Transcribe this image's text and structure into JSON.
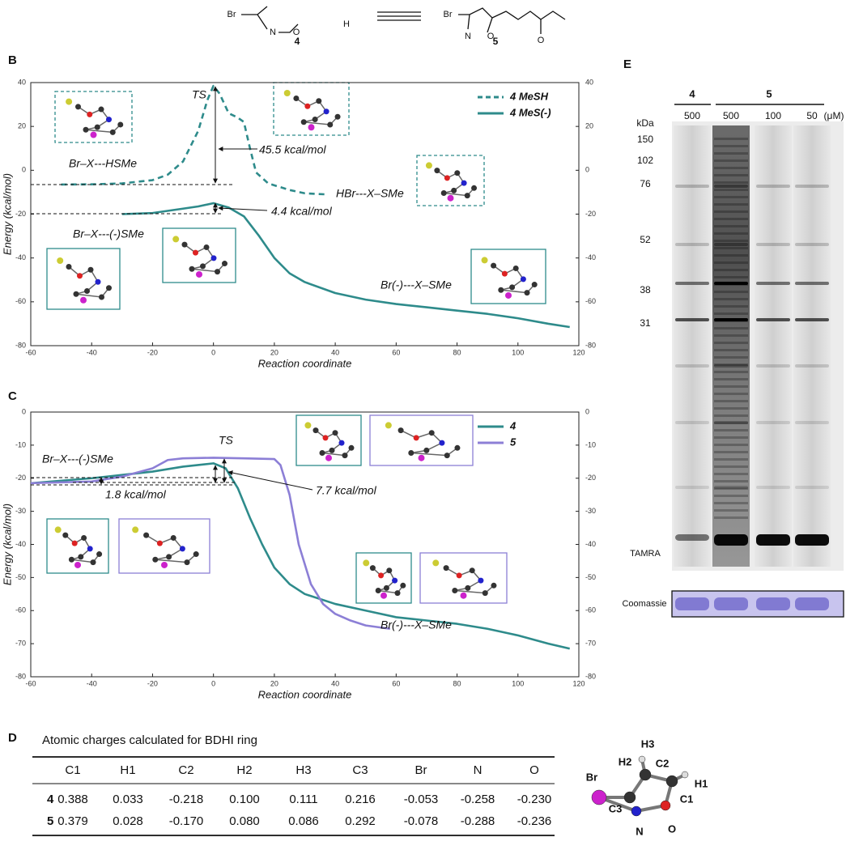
{
  "scheme": {
    "labels": [
      "4",
      "5"
    ],
    "atoms": [
      "Br",
      "N",
      "O",
      "H",
      "Br",
      "N",
      "O",
      "O"
    ]
  },
  "chart_data": [
    {
      "type": "line",
      "panel": "B",
      "x_label": "Reaction coordinate",
      "y_label": "Energy (kcal/mol)",
      "xlim": [
        -60,
        120
      ],
      "xticks": [
        -60,
        -40,
        -20,
        0,
        20,
        40,
        60,
        80,
        100,
        120
      ],
      "ylim": [
        -80,
        40
      ],
      "yticks": [
        -80,
        -60,
        -40,
        -20,
        0,
        20,
        40
      ],
      "y2lim": [
        -80,
        40
      ],
      "y2ticks": [
        -80,
        -60,
        -40,
        -20,
        0,
        20,
        40
      ],
      "legend": "top-right",
      "series": [
        {
          "name": "4 MeSH",
          "color": "#2e8b8b",
          "dashed": true,
          "x": [
            -50,
            -40,
            -30,
            -20,
            -15,
            -10,
            -5,
            -2,
            0,
            2,
            5,
            8,
            10,
            12,
            14,
            18,
            25,
            30,
            37
          ],
          "values": [
            -6.5,
            -6.4,
            -6,
            -4.5,
            -2,
            4,
            18,
            32,
            38.5,
            35,
            26,
            24,
            22,
            10,
            -1,
            -6,
            -9,
            -10.5,
            -11
          ]
        },
        {
          "name": "4 MeS(-)",
          "color": "#2e8b8b",
          "dashed": false,
          "x": [
            -30,
            -20,
            -10,
            -5,
            0,
            5,
            10,
            15,
            20,
            25,
            30,
            40,
            50,
            60,
            70,
            80,
            90,
            100,
            110,
            117
          ],
          "values": [
            -20,
            -19.5,
            -17.5,
            -16.5,
            -15,
            -17,
            -21,
            -30,
            -40,
            -47,
            -51,
            -56,
            -59,
            -61,
            -62.5,
            -64,
            -65.5,
            -67.5,
            -70,
            -71.5
          ]
        }
      ],
      "annotations": [
        "TS",
        "45.5 kcal/mol",
        "Br–X---HSMe",
        "HBr---X–SMe",
        "4.4 kcal/mol",
        "Br–X---(-)SMe",
        "Br(-)---X–SMe"
      ]
    },
    {
      "type": "line",
      "panel": "C",
      "x_label": "Reaction coordinate",
      "y_label": "Energy (kcal/mol)",
      "xlim": [
        -60,
        120
      ],
      "xticks": [
        -60,
        -40,
        -20,
        0,
        20,
        40,
        60,
        80,
        100,
        120
      ],
      "ylim": [
        -80,
        0
      ],
      "yticks": [
        -80,
        -70,
        -60,
        -50,
        -40,
        -30,
        -20,
        -10,
        0
      ],
      "y2lim": [
        -80,
        0
      ],
      "y2ticks": [
        -80,
        -70,
        -60,
        -50,
        -40,
        -30,
        -20,
        -10,
        0
      ],
      "legend": "top-right",
      "series": [
        {
          "name": "4",
          "color": "#2e8b8b",
          "dashed": false,
          "x": [
            -60,
            -40,
            -30,
            -20,
            -10,
            0,
            4,
            8,
            12,
            16,
            20,
            25,
            30,
            40,
            50,
            60,
            70,
            80,
            90,
            100,
            110,
            117
          ],
          "values": [
            -21.5,
            -20,
            -19,
            -18,
            -16.5,
            -15.5,
            -17,
            -23,
            -32,
            -40,
            -47,
            -52,
            -55,
            -58,
            -60,
            -62,
            -63,
            -64,
            -65.5,
            -67.5,
            -70,
            -71.5
          ]
        },
        {
          "name": "5",
          "color": "#8c7fd6",
          "dashed": false,
          "x": [
            -60,
            -40,
            -30,
            -20,
            -15,
            -10,
            0,
            10,
            20,
            22,
            25,
            28,
            32,
            36,
            40,
            45,
            50,
            58
          ],
          "values": [
            -21.5,
            -21,
            -19.5,
            -17,
            -14.5,
            -14,
            -13.8,
            -14,
            -14.2,
            -16,
            -25,
            -40,
            -52,
            -58,
            -61,
            -63,
            -64.5,
            -65.5
          ]
        }
      ],
      "annotations": [
        "TS",
        "Br–X---(-)SMe",
        "1.8 kcal/mol",
        "7.7 kcal/mol",
        "Br(-)---X–SMe"
      ]
    }
  ],
  "table": {
    "panel": "D",
    "title": "Atomic charges calculated for BDHI ring",
    "columns": [
      "C1",
      "H1",
      "C2",
      "H2",
      "H3",
      "C3",
      "Br",
      "N",
      "O"
    ],
    "rows": [
      {
        "label": "4",
        "cells": [
          "0.388",
          "0.033",
          "-0.218",
          "0.100",
          "0.111",
          "0.216",
          "-0.053",
          "-0.258",
          "-0.230"
        ]
      },
      {
        "label": "5",
        "cells": [
          "0.379",
          "0.028",
          "-0.170",
          "0.080",
          "0.086",
          "0.292",
          "-0.078",
          "-0.288",
          "-0.236"
        ]
      }
    ],
    "ring_atoms": [
      "Br",
      "H3",
      "H2",
      "C2",
      "H1",
      "C1",
      "C3",
      "N",
      "O"
    ]
  },
  "gel": {
    "panel": "E",
    "groups": [
      "4",
      "5"
    ],
    "concentrations": [
      "500",
      "500",
      "100",
      "50"
    ],
    "unit": "(μM)",
    "kda_label": "kDa",
    "markers": [
      "150",
      "102",
      "76",
      "52",
      "38",
      "31"
    ],
    "probe": "TAMRA",
    "stain": "Coomassie"
  }
}
